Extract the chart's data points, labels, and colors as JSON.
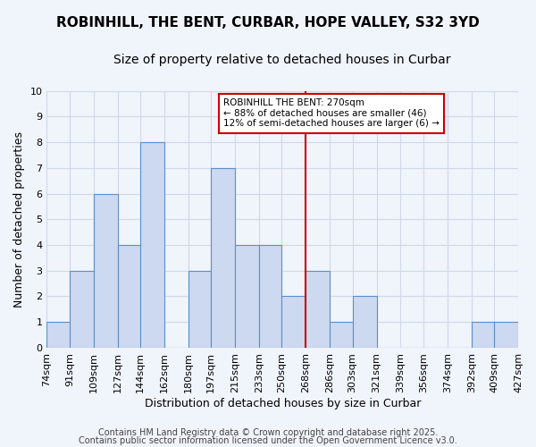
{
  "title": "ROBINHILL, THE BENT, CURBAR, HOPE VALLEY, S32 3YD",
  "subtitle": "Size of property relative to detached houses in Curbar",
  "xlabel": "Distribution of detached houses by size in Curbar",
  "ylabel": "Number of detached properties",
  "bin_labels": [
    "74sqm",
    "91sqm",
    "109sqm",
    "127sqm",
    "144sqm",
    "162sqm",
    "180sqm",
    "197sqm",
    "215sqm",
    "233sqm",
    "250sqm",
    "268sqm",
    "286sqm",
    "303sqm",
    "321sqm",
    "339sqm",
    "356sqm",
    "374sqm",
    "392sqm",
    "409sqm",
    "427sqm"
  ],
  "bin_edges": [
    74,
    91,
    109,
    127,
    144,
    162,
    180,
    197,
    215,
    233,
    250,
    268,
    286,
    303,
    321,
    339,
    356,
    374,
    392,
    409,
    427
  ],
  "counts": [
    1,
    3,
    6,
    4,
    8,
    0,
    3,
    7,
    4,
    4,
    2,
    3,
    1,
    2,
    0,
    0,
    0,
    0,
    1,
    1
  ],
  "bar_color": "#ccd9f0",
  "bar_edge_color": "#5b8fcc",
  "grid_color": "#d0d8e8",
  "background_color": "#f0f4fb",
  "vline_x": 268,
  "vline_color": "#cc0000",
  "annotation_title": "ROBINHILL THE BENT: 270sqm",
  "annotation_line1": "← 88% of detached houses are smaller (46)",
  "annotation_line2": "12% of semi-detached houses are larger (6) →",
  "annotation_box_color": "#ffffff",
  "annotation_border_color": "#cc0000",
  "ylim": [
    0,
    10
  ],
  "yticks": [
    0,
    1,
    2,
    3,
    4,
    5,
    6,
    7,
    8,
    9,
    10
  ],
  "footer1": "Contains HM Land Registry data © Crown copyright and database right 2025.",
  "footer2": "Contains public sector information licensed under the Open Government Licence v3.0.",
  "title_fontsize": 11,
  "subtitle_fontsize": 10,
  "axis_label_fontsize": 9,
  "tick_fontsize": 8,
  "footer_fontsize": 7
}
